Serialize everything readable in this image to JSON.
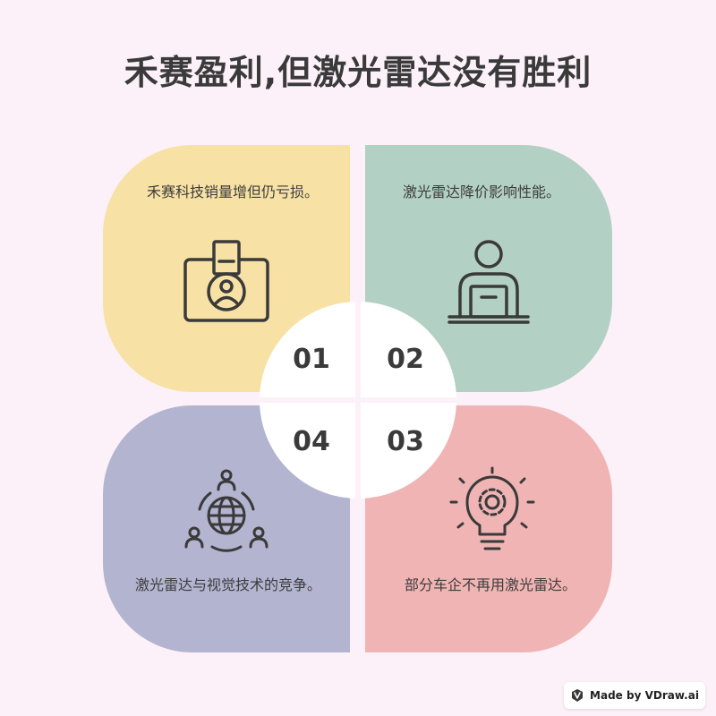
{
  "title": "禾赛盈利,但激光雷达没有胜利",
  "colors": {
    "background": "#fcf1f8",
    "q1": "#f7e1a4",
    "q2": "#b3d0c4",
    "q3": "#f0b4b4",
    "q4": "#b3b4d0",
    "center": "#ffffff",
    "icon": "#3a3a3a"
  },
  "quadrants": [
    {
      "number": "01",
      "text": "禾赛科技销量增但仍亏损。",
      "icon": "id-badge-icon"
    },
    {
      "number": "02",
      "text": "激光雷达降价影响性能。",
      "icon": "person-at-laptop-icon"
    },
    {
      "number": "03",
      "text": "部分车企不再用激光雷达。",
      "icon": "lightbulb-gear-icon"
    },
    {
      "number": "04",
      "text": "激光雷达与视觉技术的竞争。",
      "icon": "global-network-icon"
    }
  ],
  "footer": {
    "badge_label": "Made by VDraw.ai",
    "logo_icon": "vdraw-logo-icon"
  }
}
